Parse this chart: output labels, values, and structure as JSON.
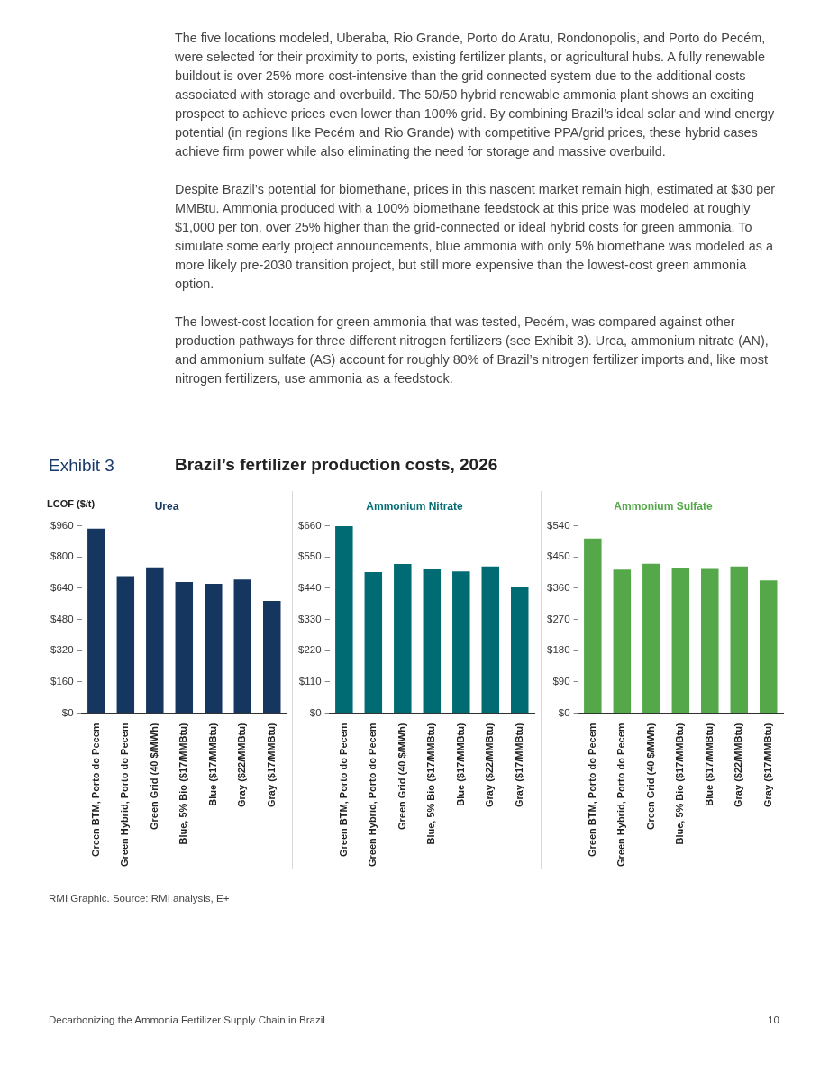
{
  "chart_data": [
    {
      "type": "other",
      "subtitle": "Exhibit 3",
      "title": "Brazil’s fertilizer production costs, 2026",
      "annotations": [
        "The five locations modeled, Uberaba, Rio Grande, Porto do Aratu, Rondonopolis, and Porto do Pecém, were selected for their proximity to ports, existing fertilizer plants, or agricultural hubs. A fully renewable buildout is over 25% more cost-intensive than the grid connected system due to the additional costs associated with storage and overbuild. The 50/50 hybrid renewable ammonia plant shows an exciting prospect to achieve prices even lower than 100% grid. By combining Brazil’s ideal solar and wind energy potential (in regions like Pecém and Rio Grande) with competitive PPA/grid prices, these hybrid cases achieve firm power while also eliminating the need for storage and massive overbuild.",
        "Despite Brazil’s potential for biomethane, prices in this nascent market remain high, estimated at $30 per MMBtu. Ammonia produced with a 100% biomethane feedstock at this price was modeled at roughly $1,000 per ton, over 25% higher than the grid-connected or ideal hybrid costs for green ammonia. To simulate some early project announcements, blue ammonia with only 5% biomethane was modeled as a more likely pre-2030 transition project, but still more expensive than the lowest-cost green ammonia option.",
        "The lowest-cost location for green ammonia that was tested, Pecém, was compared against other production pathways for three different nitrogen fertilizers (see Exhibit 3). Urea, ammonium nitrate (AN), and ammonium sulfate (AS) account for roughly 80% of Brazil’s nitrogen fertilizer imports and, like most nitrogen fertilizers, use ammonia as a feedstock."
      ]
    },
    {
      "type": "bar",
      "title": "Urea",
      "ylabel": "LCOF ($/t)",
      "categories": [
        "Green BTM, Porto do Pecem",
        "Green Hybrid, Porto do Pecem",
        "Green Grid (40 $/MWh)",
        "Blue, 5% Bio ($17/MMBtu)",
        "Blue ($17/MMBtu)",
        "Gray ($22/MMBtu)",
        "Gray ($17/MMBtu)"
      ],
      "values": [
        945,
        701,
        746,
        671,
        662,
        684,
        574
      ],
      "color": "#15375f",
      "ylim": [
        0,
        960
      ],
      "yticks": [
        {
          "value": 0,
          "label": "$0"
        },
        {
          "value": 160,
          "label": "$160"
        },
        {
          "value": 320,
          "label": "$320"
        },
        {
          "value": 480,
          "label": "$480"
        },
        {
          "value": 640,
          "label": "$640"
        },
        {
          "value": 800,
          "label": "$800"
        },
        {
          "value": 960,
          "label": "$960"
        }
      ],
      "grid": false
    },
    {
      "type": "bar",
      "title": "Ammonium Nitrate",
      "categories": [
        "Green BTM, Porto do Pecem",
        "Green Hybrid, Porto do Pecem",
        "Green Grid (40 $/MWh)",
        "Blue, 5% Bio ($17/MMBtu)",
        "Blue ($17/MMBtu)",
        "Gray ($22/MMBtu)",
        "Gray ($17/MMBtu)"
      ],
      "values": [
        658,
        496,
        525,
        506,
        499,
        516,
        442
      ],
      "color": "#006b73",
      "ylim": [
        0,
        660
      ],
      "yticks": [
        {
          "value": 0,
          "label": "$0"
        },
        {
          "value": 110,
          "label": "$110"
        },
        {
          "value": 220,
          "label": "$220"
        },
        {
          "value": 330,
          "label": "$330"
        },
        {
          "value": 440,
          "label": "$440"
        },
        {
          "value": 550,
          "label": "$550"
        },
        {
          "value": 660,
          "label": "$660"
        }
      ],
      "grid": false
    },
    {
      "type": "bar",
      "title": "Ammonium Sulfate",
      "categories": [
        "Green BTM, Porto do Pecem",
        "Green Hybrid, Porto do Pecem",
        "Green Grid (40 $/MWh)",
        "Blue, 5% Bio ($17/MMBtu)",
        "Blue ($17/MMBtu)",
        "Gray ($22/MMBtu)",
        "Gray ($17/MMBtu)"
      ],
      "values": [
        503,
        413,
        430,
        418,
        415,
        422,
        382
      ],
      "color": "#55a84a",
      "ylim": [
        0,
        540
      ],
      "yticks": [
        {
          "value": 0,
          "label": "$0"
        },
        {
          "value": 90,
          "label": "$90"
        },
        {
          "value": 180,
          "label": "$180"
        },
        {
          "value": 270,
          "label": "$270"
        },
        {
          "value": 360,
          "label": "$360"
        },
        {
          "value": 450,
          "label": "$450"
        },
        {
          "value": 540,
          "label": "$540"
        }
      ],
      "grid": false
    },
    {
      "type": "other",
      "annotations": [
        "RMI Graphic. Source: RMI analysis, E+",
        "Decarbonizing the Ammonia Fertilizer Supply Chain in Brazil",
        "10"
      ]
    }
  ]
}
